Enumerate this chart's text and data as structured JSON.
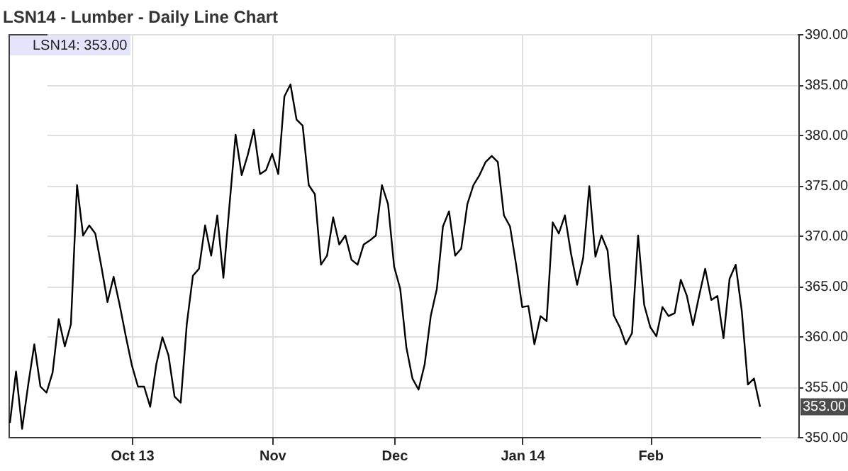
{
  "chart_data": {
    "type": "line",
    "title": "LSN14 - Lumber - Daily Line Chart",
    "categories": [
      null,
      null,
      null,
      null,
      null,
      null,
      null,
      null,
      null,
      null,
      null,
      null,
      null,
      null,
      null,
      null,
      null,
      null,
      null,
      null,
      "Oct 13",
      null,
      null,
      null,
      null,
      null,
      null,
      null,
      null,
      null,
      null,
      null,
      null,
      null,
      null,
      null,
      null,
      null,
      null,
      null,
      null,
      null,
      null,
      "Nov",
      null,
      null,
      null,
      null,
      null,
      null,
      null,
      null,
      null,
      null,
      null,
      null,
      null,
      null,
      null,
      null,
      null,
      null,
      null,
      "Dec",
      null,
      null,
      null,
      null,
      null,
      null,
      null,
      null,
      null,
      null,
      null,
      null,
      null,
      null,
      null,
      null,
      null,
      null,
      null,
      null,
      "Jan 14",
      null,
      null,
      null,
      null,
      null,
      null,
      null,
      null,
      null,
      null,
      null,
      null,
      null,
      null,
      null,
      null,
      null,
      null,
      null,
      null,
      "Feb",
      null,
      null,
      null,
      null,
      null,
      null,
      null,
      null,
      null,
      null,
      null,
      null,
      null,
      null,
      null,
      null,
      null,
      null
    ],
    "series": [
      {
        "name": "LSN14: 353.00",
        "color": "#000000",
        "values": [
          351.4,
          356.5,
          350.8,
          355.2,
          359.2,
          355.0,
          354.4,
          356.4,
          361.7,
          359.0,
          361.2,
          375,
          370,
          371,
          370.2,
          366.9,
          363.4,
          365.9,
          363.1,
          360,
          357.1,
          355,
          355,
          353,
          357.2,
          359.9,
          358.1,
          354,
          353.4,
          361.2,
          366,
          366.7,
          371,
          368,
          372,
          365.8,
          373,
          380,
          376,
          378,
          380.5,
          376.1,
          376.5,
          378.1,
          376.1,
          383.8,
          385,
          381.5,
          380.9,
          375,
          374.1,
          367.1,
          368,
          371.8,
          369.1,
          370,
          367.6,
          367.1,
          369.1,
          369.5,
          370,
          375,
          373.1,
          366.9,
          364.7,
          358.9,
          355.8,
          354.7,
          357.2,
          362,
          364.7,
          370.9,
          372.4,
          368,
          368.7,
          373.1,
          375,
          376,
          377.3,
          377.9,
          377.3,
          372,
          370.9,
          367.1,
          362.9,
          363,
          359.2,
          362,
          361.5,
          371.3,
          370.2,
          372,
          368.2,
          365.1,
          367.8,
          374.9,
          367.9,
          370,
          368.5,
          362.1,
          360.9,
          359.2,
          360.3,
          370,
          363.1,
          360.9,
          360,
          362.9,
          362,
          362.3,
          365.6,
          364,
          361.1,
          364,
          366.7,
          363.6,
          364,
          359.8,
          365.7,
          367.1,
          362.5,
          355.2,
          355.8,
          353.0
        ]
      }
    ],
    "ylim": [
      350,
      390
    ],
    "yticks": [
      {
        "value": 350,
        "label": "350.00"
      },
      {
        "value": 355,
        "label": "355.00"
      },
      {
        "value": 360,
        "label": "360.00"
      },
      {
        "value": 365,
        "label": "365.00"
      },
      {
        "value": 370,
        "label": "370.00"
      },
      {
        "value": 375,
        "label": "375.00"
      },
      {
        "value": 380,
        "label": "380.00"
      },
      {
        "value": 385,
        "label": "385.00"
      },
      {
        "value": 390,
        "label": "390.00"
      }
    ],
    "annotations": [
      "353.00"
    ],
    "grid": true,
    "legend": "top left",
    "marker": "none",
    "line_style": "solid"
  }
}
